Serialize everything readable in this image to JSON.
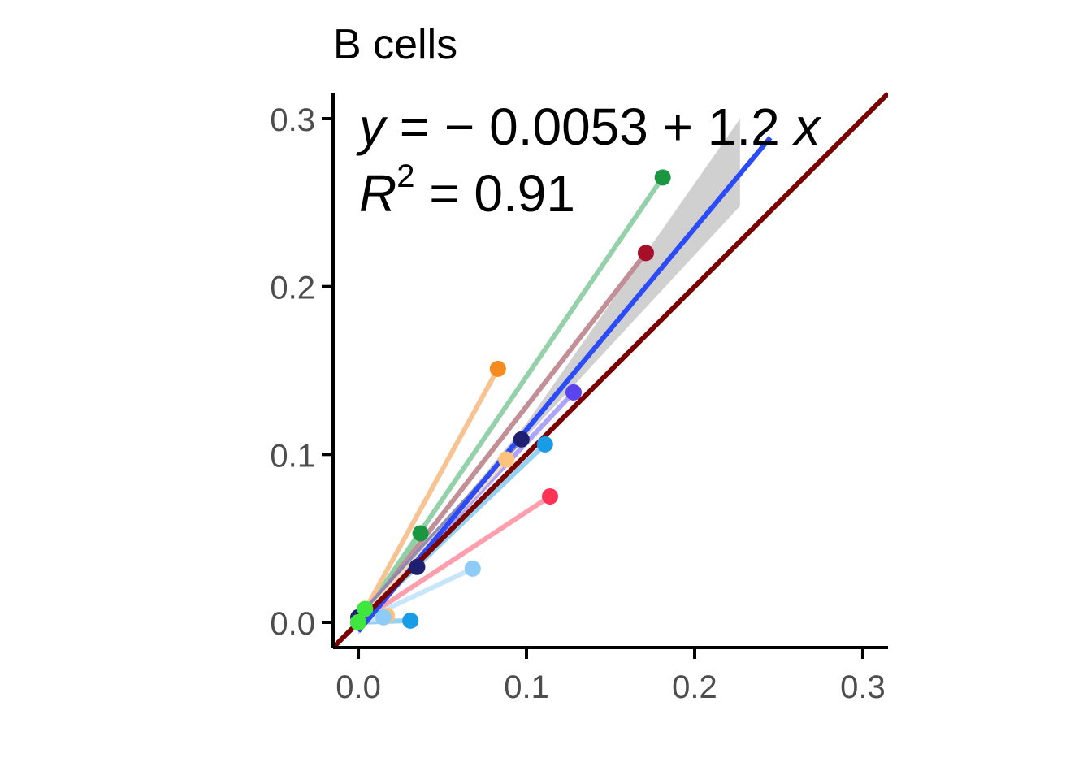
{
  "chart_data": {
    "type": "scatter",
    "title": "B cells",
    "xlabel": "",
    "ylabel": "",
    "xlim": [
      -0.015,
      0.315
    ],
    "ylim": [
      -0.015,
      0.315
    ],
    "x_ticks": [
      "0.0",
      "0.1",
      "0.2",
      "0.3"
    ],
    "y_ticks": [
      "0.0",
      "0.1",
      "0.2",
      "0.3"
    ],
    "annotation": {
      "line1_y": "y",
      "line1_eq": " = − 0.0053 + 1.2 ",
      "line1_x": "x",
      "line2_r": "R",
      "line2_sup": "2",
      "line2_val": " = 0.91"
    },
    "regression": {
      "intercept": -0.0053,
      "slope": 1.2,
      "x_range": [
        0.0,
        0.245
      ],
      "band_end_x": 0.227,
      "band_end_low": 0.248,
      "band_end_high": 0.3,
      "color": "#2a4bf7"
    },
    "identity_line": {
      "color": "#7a0000",
      "x_range": [
        -0.015,
        0.315
      ]
    },
    "grid": false,
    "legend": "none",
    "series": [
      {
        "color": "#1a9641",
        "line_color": "#8fcfa6",
        "points": [
          [
            0.0,
            0.0
          ],
          [
            0.037,
            0.053
          ],
          [
            0.181,
            0.265
          ]
        ]
      },
      {
        "color": "#a50f27",
        "line_color": "#c08a92",
        "points": [
          [
            0.0,
            0.0
          ],
          [
            0.171,
            0.22
          ]
        ]
      },
      {
        "color": "#f58a1f",
        "line_color": "#f7c08d",
        "points": [
          [
            0.0,
            0.0
          ],
          [
            0.083,
            0.151
          ]
        ]
      },
      {
        "color": "#5c43f0",
        "line_color": "#a9a0f7",
        "points": [
          [
            0.0,
            0.0
          ],
          [
            0.128,
            0.137
          ]
        ]
      },
      {
        "color": "#1f1f70",
        "line_color": "#8888b4",
        "points": [
          [
            0.0,
            0.003
          ],
          [
            0.035,
            0.033
          ],
          [
            0.097,
            0.109
          ]
        ]
      },
      {
        "color": "#1a9be6",
        "line_color": "#8fcff2",
        "points": [
          [
            0.0,
            0.0
          ],
          [
            0.111,
            0.106
          ],
          [
            0.031,
            0.001
          ]
        ]
      },
      {
        "color": "#fdc37d",
        "line_color": "#fde0bd",
        "points": [
          [
            0.0,
            0.0
          ],
          [
            0.088,
            0.097
          ],
          [
            0.017,
            0.004
          ]
        ]
      },
      {
        "color": "#ff3355",
        "line_color": "#ff99a9",
        "points": [
          [
            0.0,
            0.0
          ],
          [
            0.114,
            0.075
          ]
        ]
      },
      {
        "color": "#8ecbf7",
        "line_color": "#c6e5fb",
        "points": [
          [
            0.0,
            0.0
          ],
          [
            0.068,
            0.032
          ],
          [
            0.015,
            0.003
          ]
        ]
      },
      {
        "color": "#3ee63e",
        "line_color": "#9ff29f",
        "points": [
          [
            0.0,
            0.0
          ],
          [
            0.004,
            0.008
          ]
        ]
      }
    ]
  }
}
